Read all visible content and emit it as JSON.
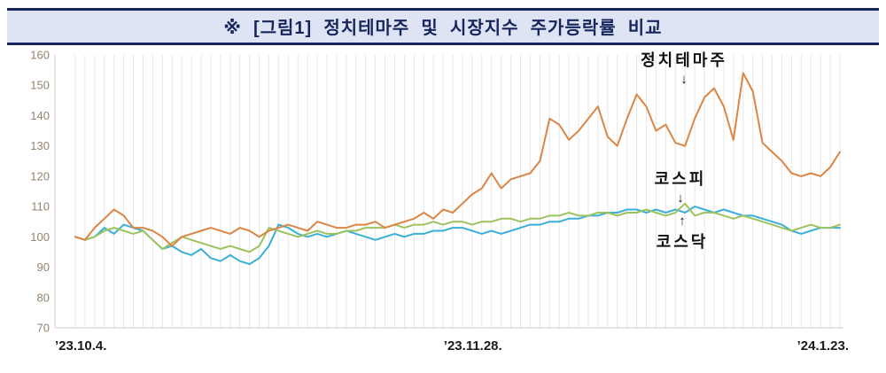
{
  "title": "※  [그림1]  정치테마주  및  시장지수  주가등락률  비교",
  "colors": {
    "title_bg": "#dee4f3",
    "title_border": "#16265c",
    "title_text": "#16265c",
    "gridline": "#e7e7e7",
    "axis_line": "#cccccc",
    "ytick_text": "#93836f",
    "xtick_text": "#1a1a1a"
  },
  "chart_data": {
    "type": "line",
    "title": "정치테마주 및 시장지수 주가등락률 비교",
    "xlabel": "",
    "ylabel": "",
    "ylim": [
      70,
      160
    ],
    "yticks": [
      70,
      80,
      90,
      100,
      110,
      120,
      130,
      140,
      150,
      160
    ],
    "grid": "vertical-stripes",
    "legend_position": "none",
    "xticks": [
      {
        "label": "’23.10.4.",
        "t": 0
      },
      {
        "label": "’23.11.28.",
        "t": 0.52
      },
      {
        "label": "’24.1.23.",
        "t": 1
      }
    ],
    "series": [
      {
        "name": "정치테마주",
        "color": "#dd8544",
        "values": [
          100,
          99,
          103,
          106,
          109,
          107,
          103,
          103,
          102,
          100,
          97,
          100,
          101,
          102,
          103,
          102,
          101,
          103,
          102,
          100,
          102,
          103,
          104,
          103,
          102,
          105,
          104,
          103,
          103,
          104,
          104,
          105,
          103,
          104,
          105,
          106,
          108,
          106,
          109,
          108,
          111,
          114,
          116,
          121,
          116,
          119,
          120,
          121,
          125,
          139,
          137,
          132,
          135,
          139,
          143,
          133,
          130,
          139,
          147,
          143,
          135,
          137,
          131,
          130,
          139,
          146,
          149,
          143,
          132,
          154,
          148,
          131,
          128,
          125,
          121,
          120,
          121,
          120,
          123,
          128
        ]
      },
      {
        "name": "코스피",
        "color": "#9dc35f",
        "values": [
          100,
          99,
          100,
          102,
          103,
          102,
          101,
          102,
          99,
          96,
          98,
          100,
          99,
          98,
          97,
          96,
          97,
          96,
          95,
          97,
          103,
          102,
          101,
          100,
          101,
          102,
          101,
          101,
          102,
          102,
          103,
          103,
          103,
          104,
          103,
          104,
          104,
          105,
          104,
          105,
          105,
          104,
          105,
          105,
          106,
          106,
          105,
          106,
          106,
          107,
          107,
          108,
          107,
          107,
          108,
          108,
          107,
          108,
          108,
          109,
          108,
          107,
          108,
          111,
          107,
          108,
          108,
          107,
          106,
          107,
          106,
          105,
          104,
          103,
          102,
          103,
          104,
          103,
          103,
          104
        ]
      },
      {
        "name": "코스닥",
        "color": "#3ab0d9",
        "values": [
          100,
          99,
          100,
          103,
          101,
          104,
          103,
          102,
          99,
          96,
          97,
          95,
          94,
          96,
          93,
          92,
          94,
          92,
          91,
          93,
          97,
          104,
          103,
          101,
          100,
          101,
          100,
          101,
          102,
          101,
          100,
          99,
          100,
          101,
          100,
          101,
          101,
          102,
          102,
          103,
          103,
          102,
          101,
          102,
          101,
          102,
          103,
          104,
          104,
          105,
          105,
          106,
          106,
          107,
          107,
          108,
          108,
          109,
          109,
          108,
          109,
          108,
          109,
          108,
          110,
          109,
          108,
          109,
          108,
          107,
          107,
          106,
          105,
          104,
          102,
          101,
          102,
          103,
          103,
          103
        ]
      }
    ],
    "annotations": [
      {
        "label": "정치테마주",
        "arrow": "↓",
        "arrow_position": "below"
      },
      {
        "label": "코스피",
        "arrow": "↓",
        "arrow_position": "below"
      },
      {
        "label": "코스닥",
        "arrow": "↑",
        "arrow_position": "above"
      }
    ]
  }
}
